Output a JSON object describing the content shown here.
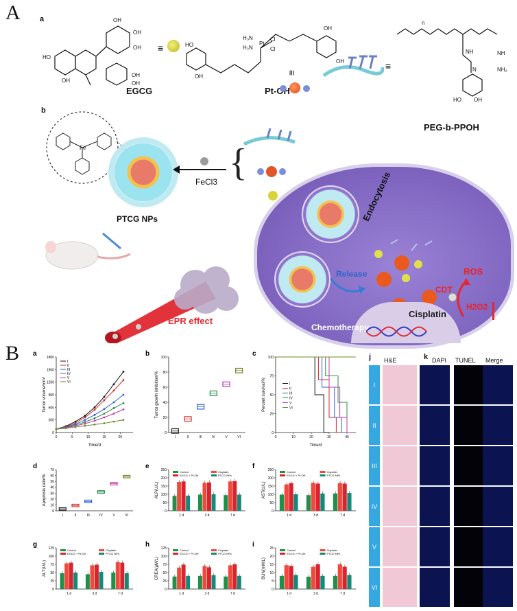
{
  "panelA": {
    "letter": "A",
    "sub_a": "a",
    "sub_b": "b",
    "compounds": {
      "egcg": "EGCG",
      "ptoh": "Pt-OH",
      "peg": "PEG-b-PPOH"
    },
    "fecl3": "FeCl3",
    "ptcg": "PTCG NPs",
    "epr": "EPR effect",
    "endocytosis": "Endocytosis",
    "release": "Release",
    "cdt": "CDT",
    "ros": "ROS",
    "h2o2": "H2O2",
    "cisplatin": "Cisplatin",
    "chemotherapy": "Chemotherapy",
    "colors": {
      "cell": "#8a6fc6",
      "np_shell": "#6fd0e0",
      "release_arrow": "#3a7bd5",
      "red": "#e8242c"
    }
  },
  "panelB": {
    "letter": "B",
    "legend": {
      "control": "Control",
      "cisplatin": "Cisplatin",
      "egcg_ptoh": "EGCG + Pt-OH",
      "ptcg": "PTCG NPs"
    },
    "series_colors": {
      "control": "#1f8f4a",
      "cisplatin": "#f04a3c",
      "egcg_ptoh": "#d9232d",
      "ptcg": "#138a78"
    },
    "histology": {
      "j_label": "j",
      "k_label": "k",
      "columns": [
        "H&E",
        "DAPI",
        "TUNEL",
        "Merge"
      ],
      "rows": [
        "I",
        "II",
        "III",
        "IV",
        "V",
        "VI"
      ]
    }
  },
  "chart_data": [
    {
      "id": "a",
      "type": "line",
      "x": [
        0,
        3,
        6,
        9,
        12,
        15,
        18,
        21
      ],
      "xlabel": "Time/d",
      "ylabel": "Tumor volume/mm³",
      "xlim": [
        0,
        24
      ],
      "ylim": [
        0,
        1800
      ],
      "xticks": [
        0,
        5,
        10,
        15,
        20
      ],
      "yticks": [
        0,
        300,
        600,
        900,
        1200,
        1500,
        1800
      ],
      "legend": "top-left",
      "series": [
        {
          "name": "I",
          "color": "#111111",
          "values": [
            80,
            150,
            260,
            400,
            600,
            850,
            1150,
            1450
          ]
        },
        {
          "name": "II",
          "color": "#d22b2b",
          "values": [
            80,
            140,
            230,
            360,
            540,
            770,
            1000,
            1250
          ]
        },
        {
          "name": "III",
          "color": "#2d5fd4",
          "values": [
            80,
            130,
            200,
            300,
            420,
            560,
            720,
            900
          ]
        },
        {
          "name": "IV",
          "color": "#2a8a4a",
          "values": [
            80,
            120,
            180,
            250,
            340,
            450,
            580,
            700
          ]
        },
        {
          "name": "V",
          "color": "#c03aa8",
          "values": [
            80,
            110,
            160,
            210,
            280,
            360,
            450,
            550
          ]
        },
        {
          "name": "VI",
          "color": "#6d8a2a",
          "values": [
            80,
            100,
            130,
            160,
            190,
            220,
            260,
            300
          ]
        }
      ]
    },
    {
      "id": "b",
      "type": "box",
      "categories": [
        "I",
        "II",
        "III",
        "IV",
        "V",
        "VI"
      ],
      "ylabel": "Tumor growth inhibition/%",
      "ylim": [
        0,
        100
      ],
      "yticks": [
        0,
        20,
        40,
        60,
        80,
        100
      ],
      "values": [
        2,
        18,
        34,
        52,
        64,
        82
      ],
      "colors": [
        "#222222",
        "#d22b2b",
        "#2d5fd4",
        "#2a8a4a",
        "#c03aa8",
        "#6d8a2a"
      ]
    },
    {
      "id": "c",
      "type": "line",
      "xlabel": "Time/d",
      "ylabel": "Percent survival/%",
      "xlim": [
        0,
        45
      ],
      "ylim": [
        0,
        100
      ],
      "xticks": [
        0,
        10,
        20,
        30,
        40
      ],
      "yticks": [
        0,
        25,
        50,
        75,
        100
      ],
      "legend": "left",
      "series": [
        {
          "name": "I",
          "color": "#111111",
          "steps": [
            [
              0,
              100
            ],
            [
              22,
              100
            ],
            [
              22,
              50
            ],
            [
              27,
              50
            ],
            [
              27,
              0
            ],
            [
              30,
              0
            ]
          ]
        },
        {
          "name": "II",
          "color": "#d22b2b",
          "steps": [
            [
              0,
              100
            ],
            [
              24,
              100
            ],
            [
              24,
              70
            ],
            [
              30,
              70
            ],
            [
              30,
              20
            ],
            [
              34,
              20
            ],
            [
              34,
              0
            ],
            [
              36,
              0
            ]
          ]
        },
        {
          "name": "III",
          "color": "#2d5fd4",
          "steps": [
            [
              0,
              100
            ],
            [
              26,
              100
            ],
            [
              26,
              60
            ],
            [
              33,
              60
            ],
            [
              33,
              20
            ],
            [
              37,
              20
            ],
            [
              37,
              0
            ],
            [
              39,
              0
            ]
          ]
        },
        {
          "name": "IV",
          "color": "#2a8a4a",
          "steps": [
            [
              0,
              100
            ],
            [
              28,
              100
            ],
            [
              28,
              75
            ],
            [
              35,
              75
            ],
            [
              35,
              40
            ],
            [
              40,
              40
            ],
            [
              40,
              0
            ],
            [
              42,
              0
            ]
          ]
        },
        {
          "name": "V",
          "color": "#c03aa8",
          "steps": [
            [
              0,
              100
            ],
            [
              30,
              100
            ],
            [
              30,
              60
            ],
            [
              36,
              60
            ],
            [
              36,
              20
            ],
            [
              40,
              20
            ],
            [
              40,
              0
            ],
            [
              42,
              0
            ]
          ]
        },
        {
          "name": "VI",
          "color": "#6d8a2a",
          "steps": [
            [
              0,
              100
            ],
            [
              45,
              100
            ]
          ]
        }
      ]
    },
    {
      "id": "d",
      "type": "box",
      "categories": [
        "I",
        "II",
        "III",
        "IV",
        "V",
        "VI"
      ],
      "ylabel": "Apoptosis ratio/%",
      "ylim": [
        0,
        70
      ],
      "yticks": [
        0,
        10,
        20,
        30,
        40,
        50,
        60,
        70
      ],
      "values": [
        3,
        9,
        16,
        32,
        46,
        58
      ],
      "colors": [
        "#222222",
        "#d22b2b",
        "#2d5fd4",
        "#2a8a4a",
        "#c03aa8",
        "#6d8a2a"
      ]
    },
    {
      "id": "e",
      "type": "bar",
      "categories": [
        "1 d",
        "3 d",
        "7 d"
      ],
      "ylabel": "ALP(U/L)",
      "ylim": [
        0,
        250
      ],
      "yticks": [
        0,
        50,
        100,
        150,
        200,
        250
      ],
      "series": [
        {
          "name": "Control",
          "values": [
            90,
            98,
            95
          ]
        },
        {
          "name": "Cisplatin",
          "values": [
            175,
            170,
            178
          ]
        },
        {
          "name": "EGCG + Pt-OH",
          "values": [
            178,
            172,
            180
          ]
        },
        {
          "name": "PTCG NPs",
          "values": [
            92,
            100,
            98
          ]
        }
      ]
    },
    {
      "id": "f",
      "type": "bar",
      "categories": [
        "1 d",
        "3 d",
        "7 d"
      ],
      "ylabel": "AST(U/L)",
      "ylim": [
        0,
        250
      ],
      "yticks": [
        0,
        50,
        100,
        150,
        200,
        250
      ],
      "series": [
        {
          "name": "Control",
          "values": [
            98,
            95,
            105
          ]
        },
        {
          "name": "Cisplatin",
          "values": [
            160,
            170,
            168
          ]
        },
        {
          "name": "EGCG + Pt-OH",
          "values": [
            168,
            165,
            165
          ]
        },
        {
          "name": "PTCG NPs",
          "values": [
            100,
            105,
            108
          ]
        }
      ]
    },
    {
      "id": "g",
      "type": "bar",
      "categories": [
        "1 d",
        "3 d",
        "7 d"
      ],
      "ylabel": "ALT(U/L)",
      "ylim": [
        0,
        125
      ],
      "yticks": [
        0,
        25,
        50,
        75,
        100,
        125
      ],
      "series": [
        {
          "name": "Control",
          "values": [
            48,
            45,
            50
          ]
        },
        {
          "name": "Cisplatin",
          "values": [
            78,
            72,
            82
          ]
        },
        {
          "name": "EGCG + Pt-OH",
          "values": [
            80,
            74,
            80
          ]
        },
        {
          "name": "PTCG NPs",
          "values": [
            50,
            52,
            48
          ]
        }
      ]
    },
    {
      "id": "h",
      "type": "bar",
      "categories": [
        "1 d",
        "3 d",
        "7 d"
      ],
      "ylabel": "CREA(μM/L)",
      "ylim": [
        0,
        125
      ],
      "yticks": [
        0,
        25,
        50,
        75,
        100,
        125
      ],
      "series": [
        {
          "name": "Control",
          "values": [
            38,
            40,
            38
          ]
        },
        {
          "name": "Cisplatin",
          "values": [
            65,
            70,
            72
          ]
        },
        {
          "name": "EGCG + Pt-OH",
          "values": [
            74,
            66,
            75
          ]
        },
        {
          "name": "PTCG NPs",
          "values": [
            40,
            42,
            40
          ]
        }
      ]
    },
    {
      "id": "i",
      "type": "bar",
      "categories": [
        "1 d",
        "3 d",
        "7 d"
      ],
      "ylabel": "BUN(mM/L)",
      "ylim": [
        0,
        25
      ],
      "yticks": [
        0,
        5,
        10,
        15,
        20,
        25
      ],
      "series": [
        {
          "name": "Control",
          "values": [
            8,
            7.5,
            8
          ]
        },
        {
          "name": "Cisplatin",
          "values": [
            14.5,
            13.5,
            15
          ]
        },
        {
          "name": "EGCG + Pt-OH",
          "values": [
            14,
            15,
            13.5
          ]
        },
        {
          "name": "PTCG NPs",
          "values": [
            8.5,
            8,
            8.5
          ]
        }
      ]
    }
  ]
}
